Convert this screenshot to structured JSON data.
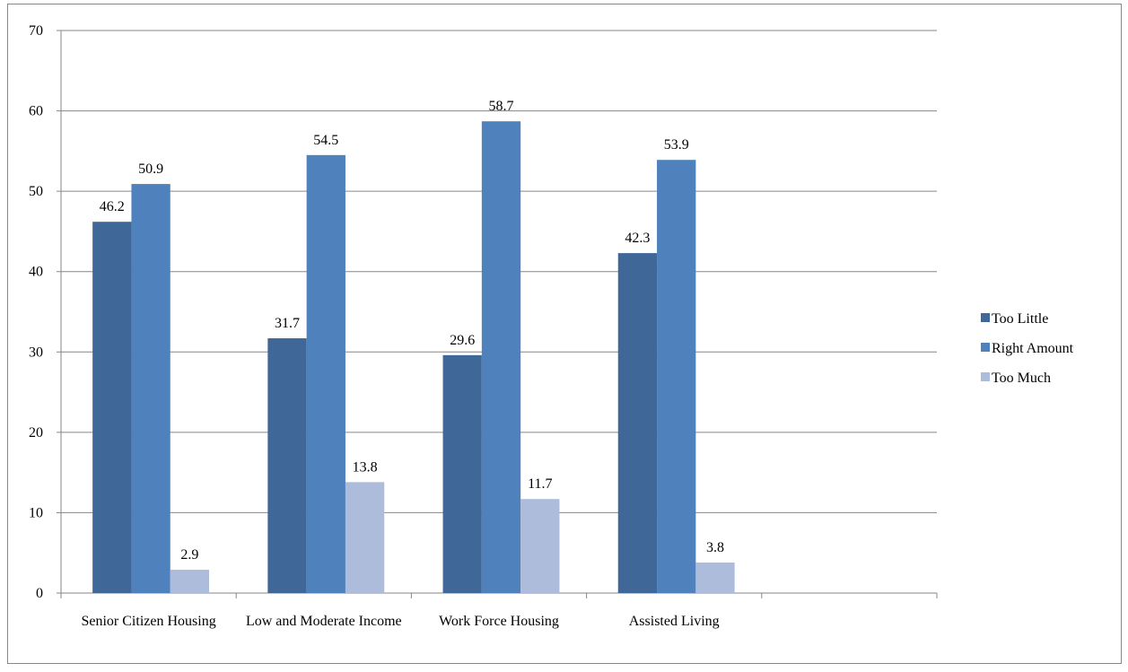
{
  "chart_data": {
    "type": "bar",
    "categories": [
      "Senior Citizen Housing",
      "Low and Moderate Income",
      "Work Force Housing",
      "Assisted Living",
      null
    ],
    "series": [
      {
        "name": "Too Little",
        "color": "#3f6898",
        "values": [
          46.2,
          31.7,
          29.6,
          42.3,
          null
        ]
      },
      {
        "name": "Right Amount",
        "color": "#4f81bd",
        "values": [
          50.9,
          54.5,
          58.7,
          53.9,
          null
        ]
      },
      {
        "name": "Too Much",
        "color": "#adbcdb",
        "values": [
          2.9,
          13.8,
          11.7,
          3.8,
          null
        ]
      }
    ],
    "ylim": [
      0,
      70
    ],
    "yticks": [
      0,
      10,
      20,
      30,
      40,
      50,
      60,
      70
    ],
    "grid": true,
    "legend": "right"
  }
}
